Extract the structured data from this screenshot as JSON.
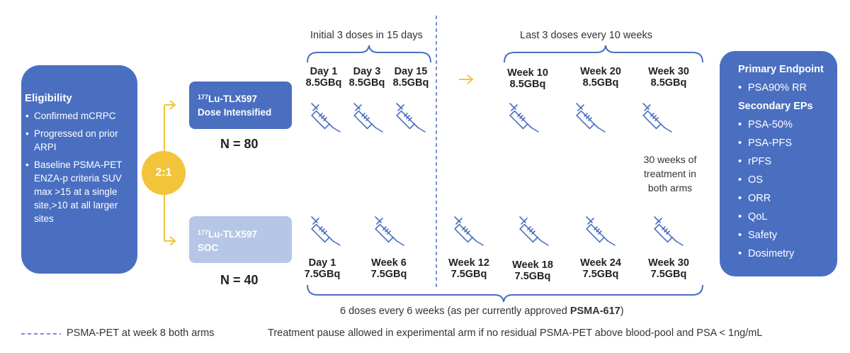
{
  "eligibility": {
    "title": "Eligibility",
    "items": [
      "Confirmed mCRPC",
      "Progressed on prior ARPI",
      "Baseline PSMA-PET ENZA-p criteria SUV max >15 at a single site,>10 at all larger sites"
    ]
  },
  "randomization": {
    "ratio": "2:1"
  },
  "arm1": {
    "sup": "177",
    "name": "Lu-TLX597",
    "subtitle": "Dose Intensified",
    "n": "N = 80"
  },
  "arm2": {
    "sup": "177",
    "name": "Lu-TLX597",
    "subtitle": "SOC",
    "n": "N = 40"
  },
  "top_phase": {
    "initial_label": "Initial 3 doses in 15 days",
    "last_label": "Last 3 doses every 10 weeks",
    "doses": [
      {
        "day": "Day 1",
        "amount": "8.5GBq"
      },
      {
        "day": "Day 3",
        "amount": "8.5GBq"
      },
      {
        "day": "Day 15",
        "amount": "8.5GBq"
      },
      {
        "day": "Week 10",
        "amount": "8.5GBq"
      },
      {
        "day": "Week 20",
        "amount": "8.5GBq"
      },
      {
        "day": "Week 30",
        "amount": "8.5GBq"
      }
    ]
  },
  "bottom_phase": {
    "label_prefix": "6 doses every 6 weeks (as per currently approved ",
    "label_bold": "PSMA-617",
    "label_suffix": ")",
    "doses": [
      {
        "day": "Day 1",
        "amount": "7.5GBq"
      },
      {
        "day": "Week 6",
        "amount": "7.5GBq"
      },
      {
        "day": "Week 12",
        "amount": "7.5GBq"
      },
      {
        "day": "Week 18",
        "amount": "7.5GBq"
      },
      {
        "day": "Week 24",
        "amount": "7.5GBq"
      },
      {
        "day": "Week 30",
        "amount": "7.5GBq"
      }
    ]
  },
  "treatment_note": "30 weeks of treatment in both arms",
  "endpoints": {
    "primary_title": "Primary Endpoint",
    "primary": [
      "PSA90% RR"
    ],
    "secondary_title": "Secondary EPs",
    "secondary": [
      "PSA-50%",
      "PSA-PFS",
      "rPFS",
      "OS",
      "ORR",
      "QoL",
      "Safety",
      "Dosimetry"
    ]
  },
  "footer": {
    "legend": "PSMA-PET at week 8 both arms",
    "pause_note": "Treatment pause allowed in experimental arm if no residual PSMA-PET above blood-pool and PSA < 1ng/mL"
  },
  "colors": {
    "blue": "#4a6fc1",
    "light_blue": "#b6c6e6",
    "yellow": "#f2c43c",
    "line": "#4a6fc1"
  }
}
